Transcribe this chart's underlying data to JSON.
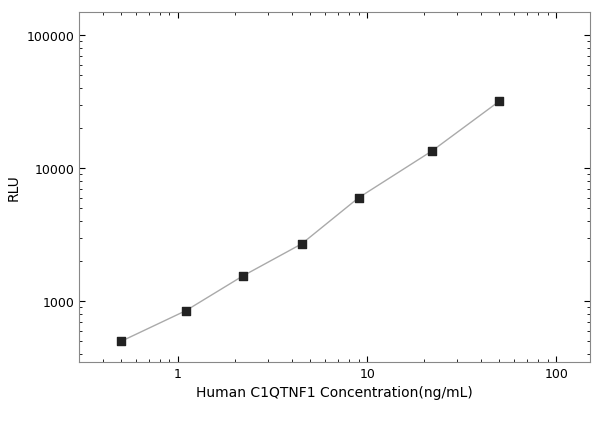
{
  "x": [
    0.5,
    1.1,
    2.2,
    4.5,
    9.0,
    22.0,
    50.0
  ],
  "y": [
    500,
    850,
    1550,
    2700,
    6000,
    13500,
    32000
  ],
  "xlabel": "Human C1QTNF1 Concentration(ng/mL)",
  "ylabel": "RLU",
  "xlim": [
    0.3,
    150
  ],
  "ylim": [
    350,
    150000
  ],
  "xticks": [
    1,
    10,
    100
  ],
  "yticks": [
    1000,
    10000,
    100000
  ],
  "line_color": "#aaaaaa",
  "marker_color": "#222222",
  "marker_size": 6,
  "line_width": 1.0,
  "bg_color": "#ffffff",
  "xlabel_fontsize": 10,
  "ylabel_fontsize": 10,
  "tick_fontsize": 9,
  "spine_color": "#888888"
}
